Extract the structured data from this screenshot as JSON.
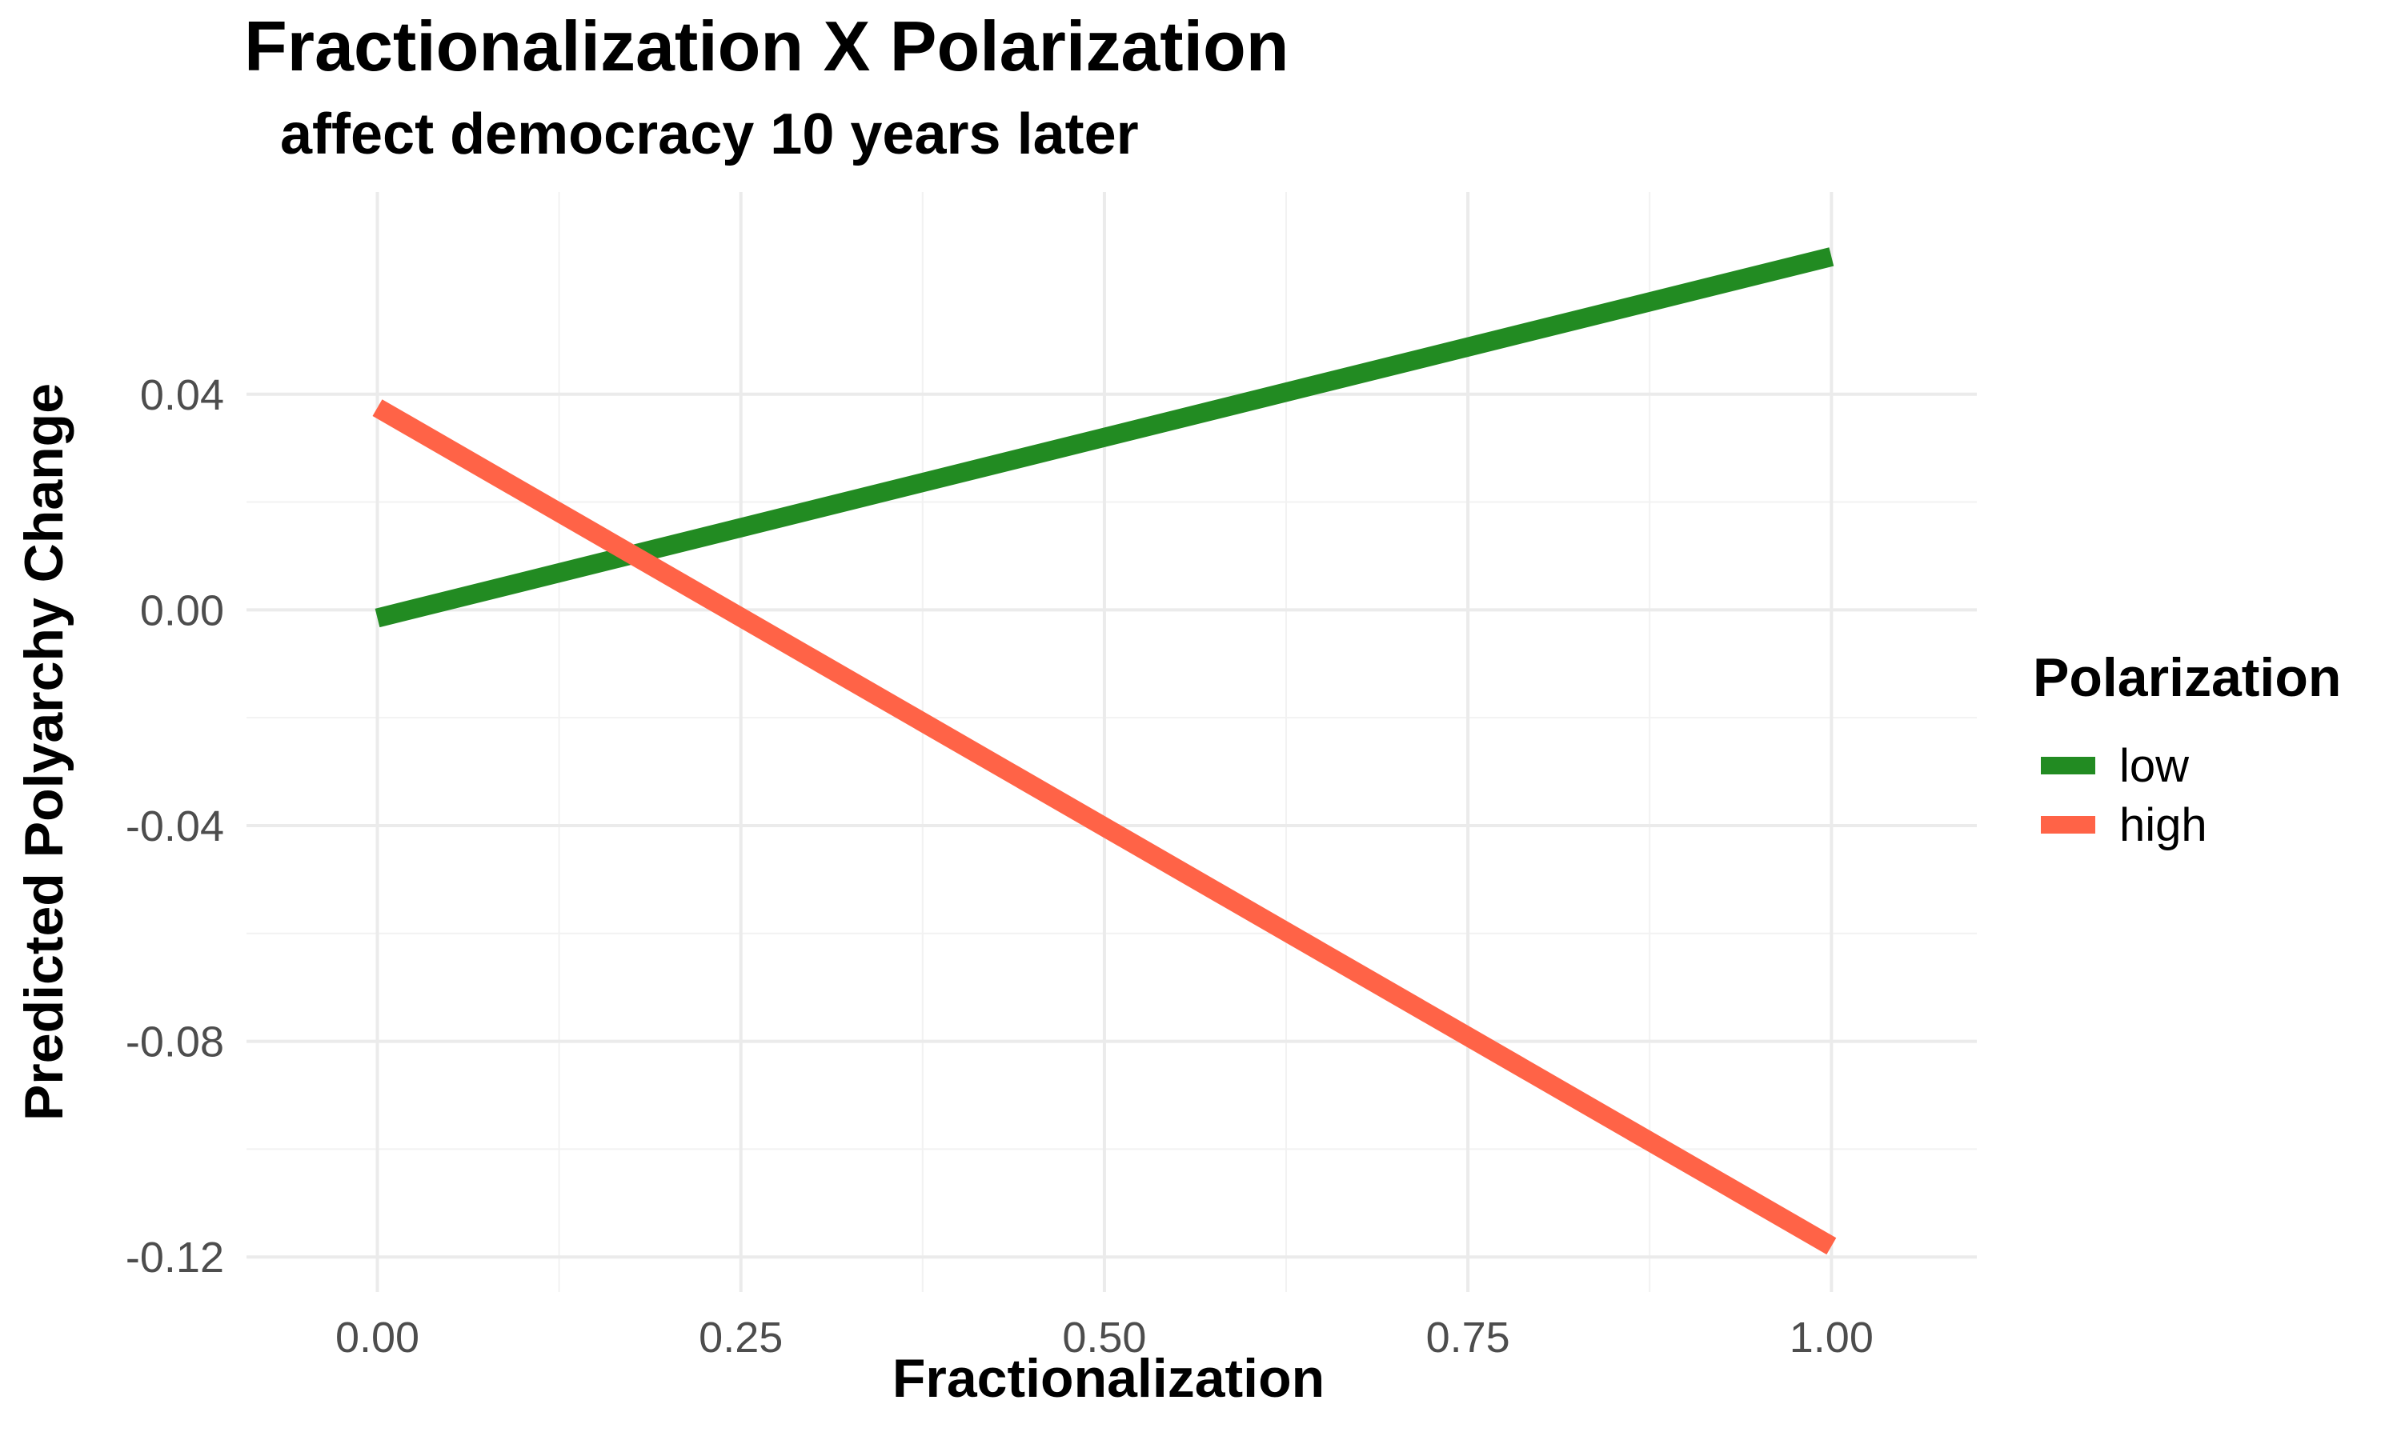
{
  "chart_data": {
    "type": "line",
    "title": "Fractionalization X Polarization",
    "subtitle": "affect democracy 10 years later",
    "xlabel": "Fractionalization",
    "ylabel": "Predicted Polyarchy Change",
    "xlim": [
      -0.09,
      1.1
    ],
    "ylim": [
      -0.1265,
      0.0775
    ],
    "x_ticks": [
      0.0,
      0.25,
      0.5,
      0.75,
      1.0
    ],
    "x_tick_labels": [
      "0.00",
      "0.25",
      "0.50",
      "0.75",
      "1.00"
    ],
    "y_ticks": [
      0.04,
      0.0,
      -0.04,
      -0.08,
      -0.12
    ],
    "y_tick_labels": [
      "0.04",
      "0.00",
      "-0.04",
      "-0.08",
      "-0.12"
    ],
    "grid": true,
    "legend_title": "Polarization",
    "legend_position": "right",
    "series": [
      {
        "name": "low",
        "color": "#228B22",
        "x": [
          0.0,
          1.0
        ],
        "y": [
          -0.0015,
          0.0655
        ]
      },
      {
        "name": "high",
        "color": "#FF6347",
        "x": [
          0.0,
          1.0
        ],
        "y": [
          0.0375,
          -0.118
        ]
      }
    ]
  }
}
